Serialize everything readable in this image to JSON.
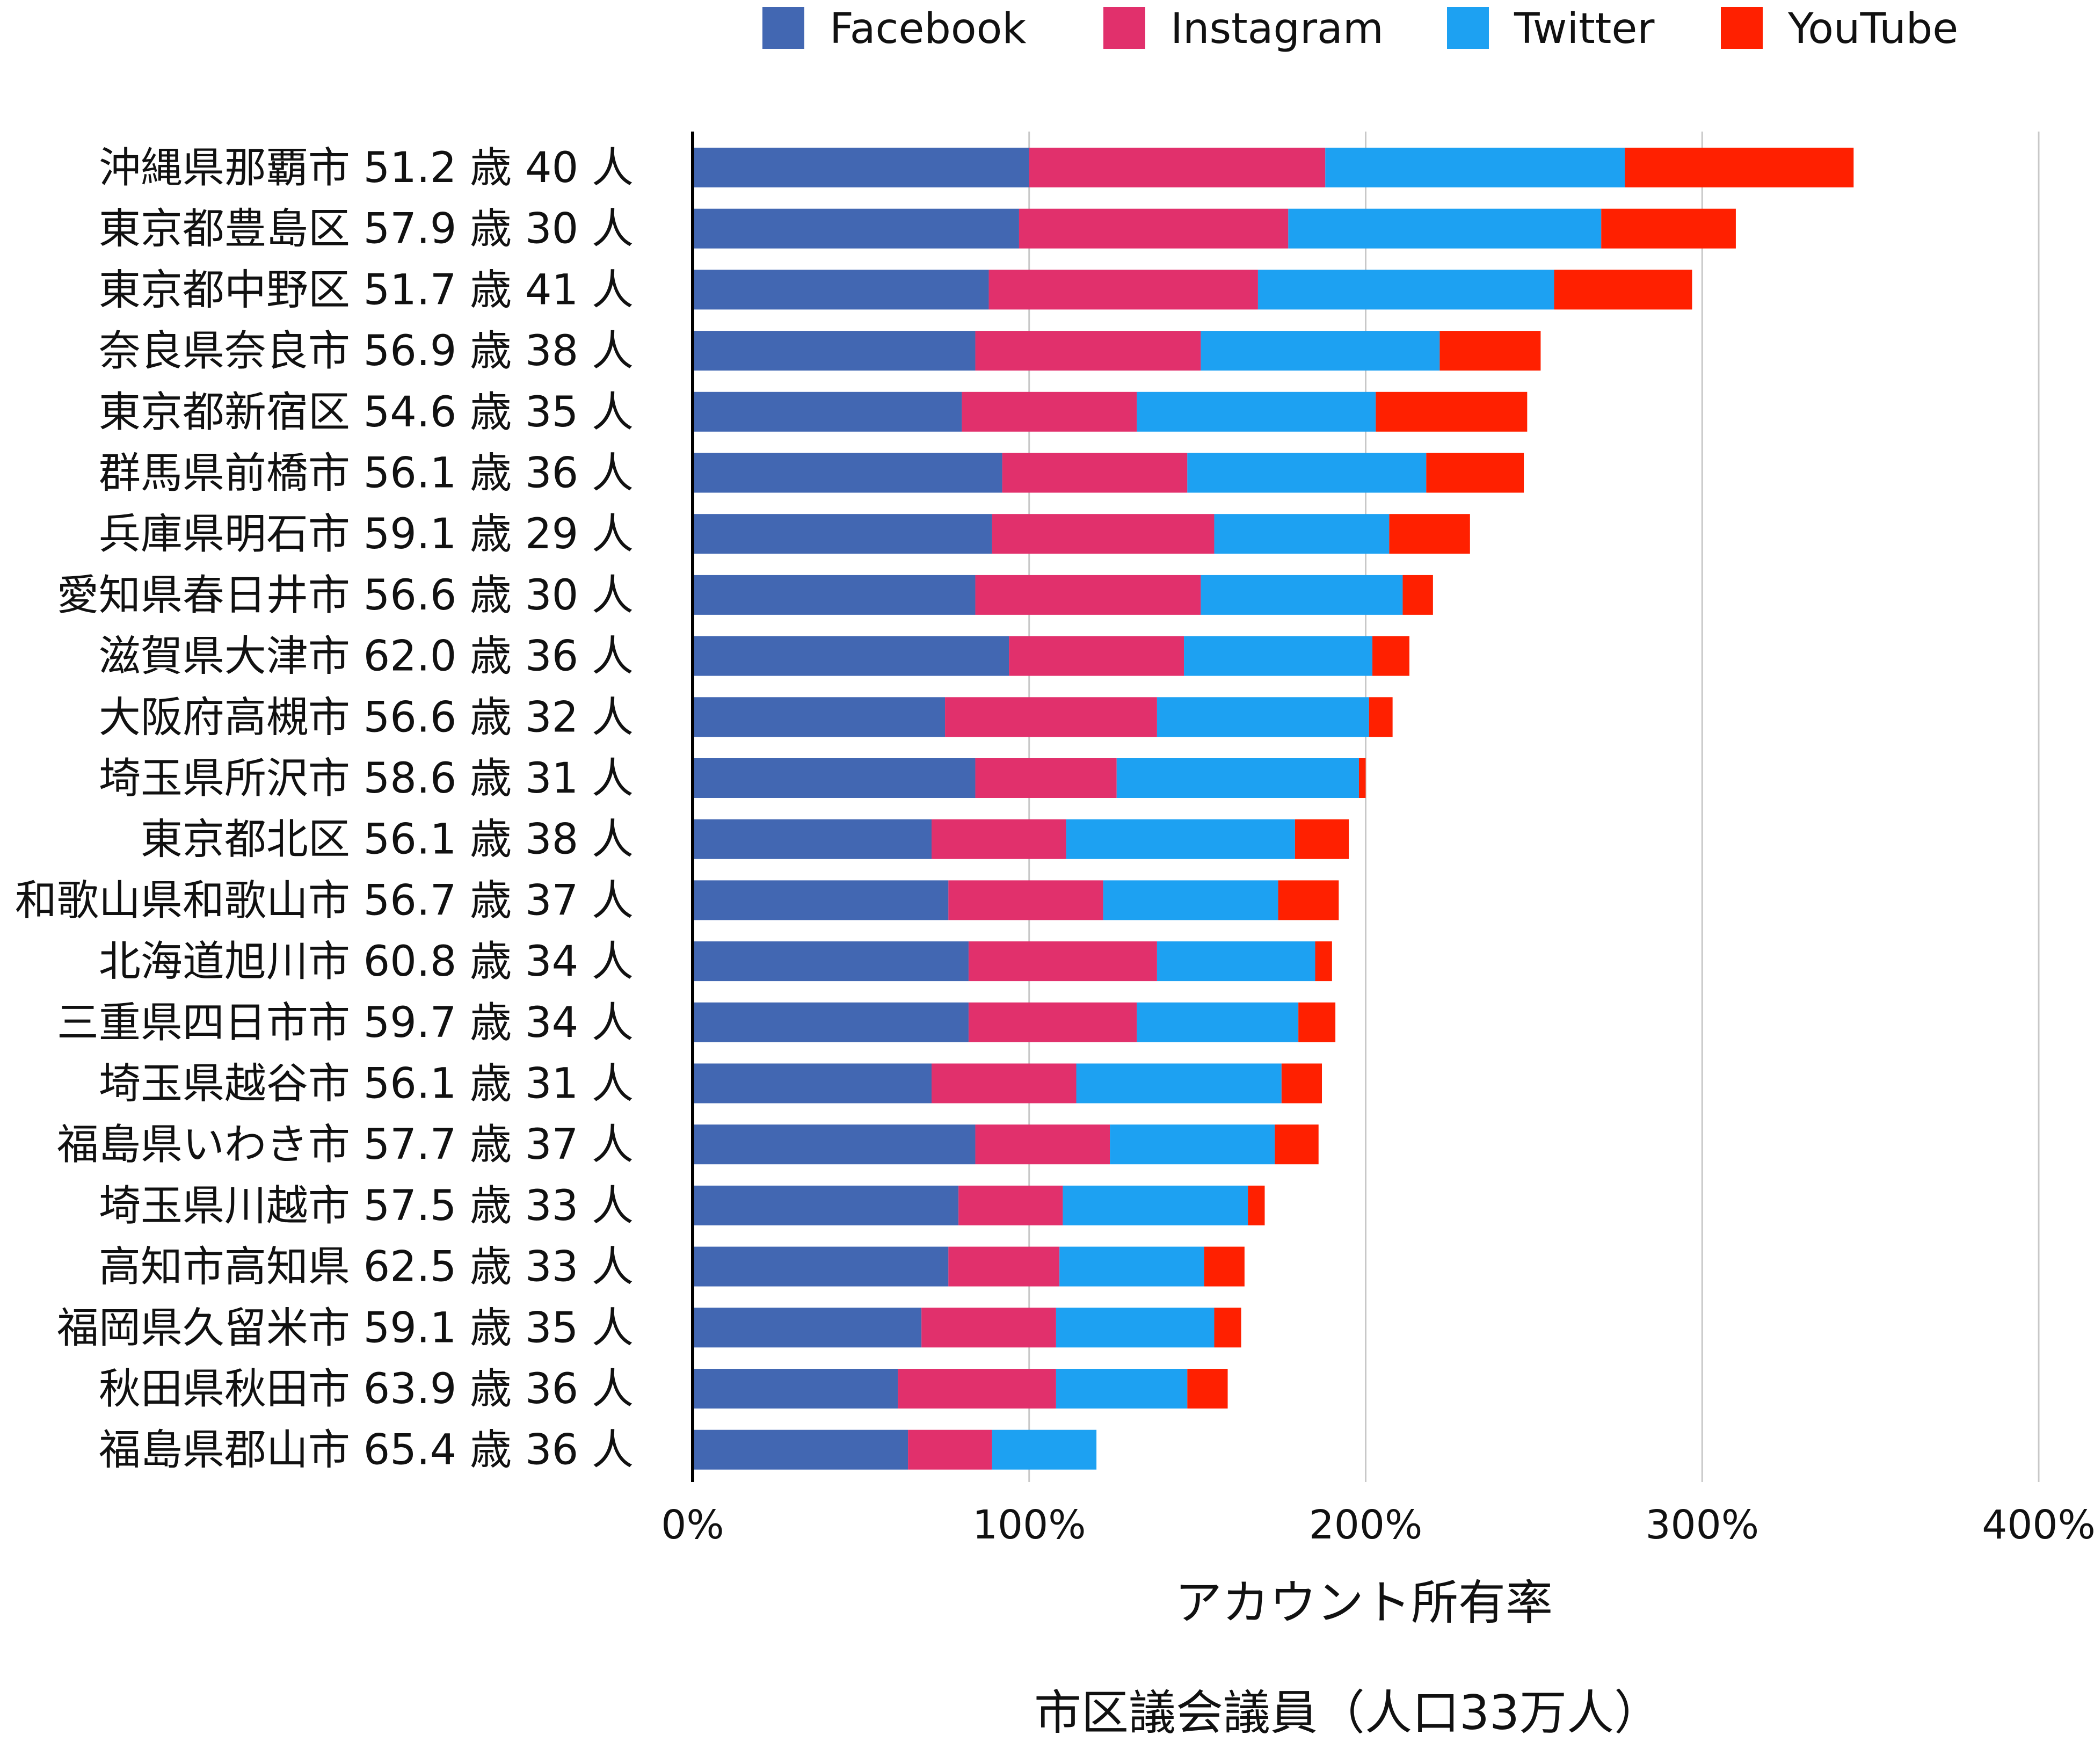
{
  "chart_data": {
    "type": "bar",
    "orientation": "horizontal",
    "stacked": true,
    "categories": [
      "沖縄県那覇市 51.2 歳 40 人",
      "東京都豊島区 57.9 歳 30 人",
      "東京都中野区 51.7 歳 41 人",
      "奈良県奈良市 56.9 歳 38 人",
      "東京都新宿区 54.6 歳 35 人",
      "群馬県前橋市 56.1 歳 36 人",
      "兵庫県明石市 59.1 歳 29 人",
      "愛知県春日井市 56.6 歳 30 人",
      "滋賀県大津市 62.0 歳 36 人",
      "大阪府高槻市 56.6 歳 32 人",
      "埼玉県所沢市 58.6 歳 31 人",
      "東京都北区 56.1 歳 38 人",
      "和歌山県和歌山市 56.7 歳 37 人",
      "北海道旭川市 60.8 歳 34 人",
      "三重県四日市市 59.7 歳 34 人",
      "埼玉県越谷市 56.1 歳 31 人",
      "福島県いわき市 57.7 歳 37 人",
      "埼玉県川越市 57.5 歳 33 人",
      "高知市高知県 62.5 歳 33 人",
      "福岡県久留米市 59.1 歳 35 人",
      "秋田県秋田市 63.9 歳 36 人",
      "福島県郡山市 65.4 歳 36 人"
    ],
    "series": [
      {
        "name": "Facebook",
        "color": "#4267B2",
        "values": [
          100,
          97,
          88,
          84,
          80,
          92,
          89,
          84,
          94,
          75,
          84,
          71,
          76,
          82,
          82,
          71,
          84,
          79,
          76,
          68,
          61,
          64
        ]
      },
      {
        "name": "Instagram",
        "color": "#E1306C",
        "values": [
          88,
          80,
          80,
          67,
          52,
          55,
          66,
          67,
          52,
          63,
          42,
          40,
          46,
          56,
          50,
          43,
          40,
          31,
          33,
          40,
          47,
          25
        ]
      },
      {
        "name": "Twitter",
        "color": "#1DA1F2",
        "values": [
          89,
          93,
          88,
          71,
          71,
          71,
          52,
          60,
          56,
          63,
          72,
          68,
          52,
          47,
          48,
          61,
          49,
          55,
          43,
          47,
          39,
          31
        ]
      },
      {
        "name": "YouTube",
        "color": "#FF2000",
        "values": [
          68,
          40,
          41,
          30,
          45,
          29,
          24,
          9,
          11,
          7,
          2,
          16,
          18,
          5,
          11,
          12,
          13,
          5,
          12,
          8,
          12,
          0
        ]
      }
    ],
    "xlabel": "アカウント所有率",
    "caption": "市区議会議員（人口33万人）",
    "xlim": [
      0,
      400
    ],
    "xticks": [
      "0%",
      "100%",
      "200%",
      "300%",
      "400%"
    ],
    "grid": true,
    "legend_position": "top"
  }
}
